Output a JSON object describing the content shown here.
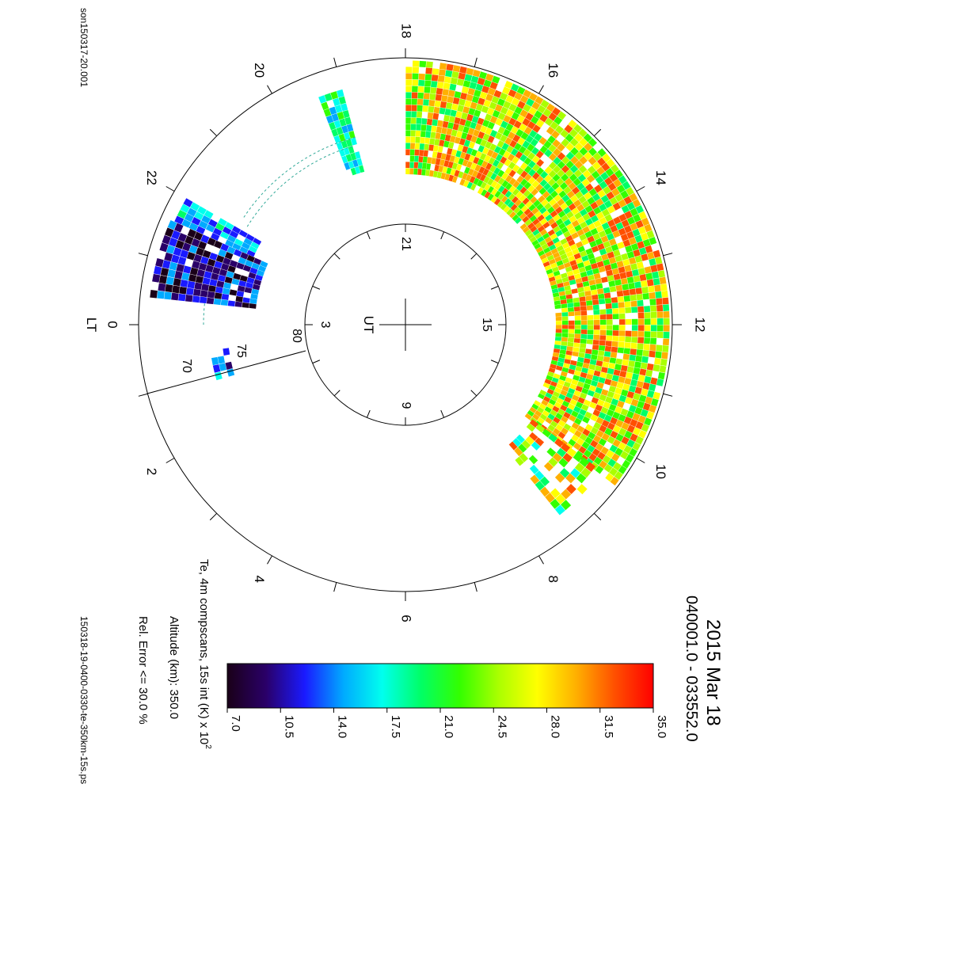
{
  "file_label": "son150317-20.001",
  "ps_label": "150318-19-0400-0330-te-350km-15s.ps",
  "title": {
    "date": "2015 Mar 18",
    "time_range": "040001.0 - 033552.0"
  },
  "caption": {
    "line1": "Te, 4m compscans, 15s int (K) x 10",
    "line1_sup": "2",
    "line2": "Altitude (km): 350.0",
    "line3": "Rel. Error <= 30.0 %"
  },
  "chart_data": {
    "type": "heatmap",
    "projection": "polar (magnetic latitude / local time)",
    "quantity": "Te",
    "outer_lt_labels": [
      "0",
      "2",
      "4",
      "6",
      "8",
      "10",
      "12",
      "14",
      "16",
      "18",
      "20",
      "22"
    ],
    "lt_axis_name": "LT",
    "inner_ut_labels": [
      "3",
      "9",
      "15",
      "21"
    ],
    "ut_axis_name": "UT",
    "latitude_labels": [
      "70",
      "75",
      "80"
    ],
    "colorbar": {
      "min": 7.0,
      "max": 35.0,
      "tick_labels": [
        "7.0",
        "10.5",
        "14.0",
        "17.5",
        "21.0",
        "24.5",
        "28.0",
        "31.5",
        "35.0"
      ],
      "colors": [
        "#1a0018",
        "#2a0068",
        "#1a1aff",
        "#00aaff",
        "#00ffee",
        "#00ff66",
        "#33ff00",
        "#aaff00",
        "#ffff00",
        "#ffb000",
        "#ff5000",
        "#ff0000"
      ]
    },
    "sectors": [
      {
        "lt_start": 22.4,
        "lt_end": 23.6,
        "mean": 11.5
      },
      {
        "lt_start": 22.0,
        "lt_end": 22.4,
        "mean": 16.0
      },
      {
        "lt_start": 19.0,
        "lt_end": 19.4,
        "mean": 18.5
      },
      {
        "lt_start": 9.5,
        "lt_end": 18.0,
        "mean": 26.0
      },
      {
        "lt_start": 8.6,
        "lt_end": 9.5,
        "mean": 24.0
      }
    ]
  }
}
